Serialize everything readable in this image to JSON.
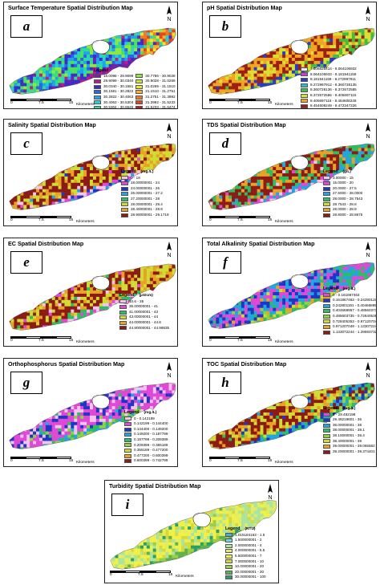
{
  "panels": [
    {
      "id": "a",
      "letter": "a",
      "title": "Surface Temperature Spatial Distribution Map",
      "legend_title": "Legend",
      "legend_unit": "",
      "legend_columns": 2,
      "legend_items": [
        {
          "label": "16.0098 - 29.9099",
          "color": "#7e1fa0"
        },
        {
          "label": "29.9099 - 30.0340",
          "color": "#c01a8a"
        },
        {
          "label": "30.0340 - 30.1581",
          "color": "#3d2bcc"
        },
        {
          "label": "30.1581 - 30.2822",
          "color": "#2f63e6"
        },
        {
          "label": "30.2822 - 30.4063",
          "color": "#1ea3ef"
        },
        {
          "label": "30.4063 - 30.5304",
          "color": "#27d0d4"
        },
        {
          "label": "30.5304 - 30.6545",
          "color": "#2ddc93"
        },
        {
          "label": "30.6545 - 30.7786",
          "color": "#49e35a"
        },
        {
          "label": "30.7786 - 30.9028",
          "color": "#8fe83a"
        },
        {
          "label": "30.9028 - 31.0269",
          "color": "#c7ec2f"
        },
        {
          "label": "31.0269 - 31.1510",
          "color": "#f2e42a"
        },
        {
          "label": "31.1510 - 31.2751",
          "color": "#f6b327"
        },
        {
          "label": "31.2751 - 31.3992",
          "color": "#f07c22"
        },
        {
          "label": "31.3992 - 31.5233",
          "color": "#e4471f"
        },
        {
          "label": "31.5233 - 31.6474",
          "color": "#c8151a"
        }
      ],
      "scale_ticks": [
        "0",
        "7.5",
        "15"
      ],
      "scale_unit": "Kilometers",
      "north": "N"
    },
    {
      "id": "b",
      "letter": "b",
      "title": "pH Spatial Distribution Map",
      "legend_title": "",
      "legend_unit": "",
      "legend_columns": 1,
      "legend_items": [
        {
          "label": "7.506825414 - 8.064106932",
          "color": "#efe9f5"
        },
        {
          "label": "8.064106933 - 8.181941158",
          "color": "#d23bd0"
        },
        {
          "label": "8.181941159 - 8.272997911",
          "color": "#2b3ac9"
        },
        {
          "label": "8.272997912 - 8.360728135",
          "color": "#27bdd6"
        },
        {
          "label": "8.360728136 - 8.372672585",
          "color": "#3fbe41"
        },
        {
          "label": "8.372672586 - 8.405697115",
          "color": "#d9e033"
        },
        {
          "label": "8.405697116 - 8.454608248",
          "color": "#f2a521"
        },
        {
          "label": "8.454608249 - 8.472347226",
          "color": "#9c1f16"
        }
      ],
      "scale_ticks": [
        "0",
        "7.5",
        "15"
      ],
      "scale_unit": "Kilometers",
      "north": "N"
    },
    {
      "id": "c",
      "letter": "c",
      "title": "Salinity Spatial Distribution Map",
      "legend_title": "Legend",
      "legend_unit": "(mg./L)",
      "legend_columns": 1,
      "legend_items": [
        {
          "label": "0 - 18",
          "color": "#f4c3ee"
        },
        {
          "label": "18.00000001 - 24",
          "color": "#df49d5"
        },
        {
          "label": "24.00000001 - 26",
          "color": "#1f35c5"
        },
        {
          "label": "26.00000001 - 27.2",
          "color": "#25a5e0"
        },
        {
          "label": "27.20000001 - 28",
          "color": "#2cbf5f"
        },
        {
          "label": "28.00000001 - 28.4",
          "color": "#cfdd33"
        },
        {
          "label": "28.40000001 - 28.9",
          "color": "#e9a324"
        },
        {
          "label": "28.90000001 - 29.1719",
          "color": "#8d1a15"
        }
      ],
      "scale_ticks": [
        "0",
        "7.5",
        "15"
      ],
      "scale_unit": "Kilometers",
      "north": "N"
    },
    {
      "id": "d",
      "letter": "d",
      "title": "TDS Spatial Distribution Map",
      "legend_title": "Legend",
      "legend_unit": "(g/L)",
      "legend_columns": 1,
      "legend_items": [
        {
          "label": "3.00000 - 15",
          "color": "#f4c3ee"
        },
        {
          "label": "15.0000 - 20",
          "color": "#df49d5"
        },
        {
          "label": "20.0000 - 27.5",
          "color": "#1f35c5"
        },
        {
          "label": "27.5000 - 28.0000",
          "color": "#25a5e0"
        },
        {
          "label": "28.0000 - 28.7543",
          "color": "#2cbf5f"
        },
        {
          "label": "28.7543 - 28.8",
          "color": "#cfdd33"
        },
        {
          "label": "28.0000 - 28.8",
          "color": "#e9a324"
        },
        {
          "label": "28.8000 - 28.8675",
          "color": "#8d1a15"
        }
      ],
      "scale_ticks": [
        "0",
        "7.5",
        "15"
      ],
      "scale_unit": "Kilometers",
      "north": "N"
    },
    {
      "id": "e",
      "letter": "e",
      "title": "EC Spatial Distribution Map",
      "legend_title": "Legend",
      "legend_unit": "(µS/cm)",
      "legend_columns": 1,
      "legend_items": [
        {
          "label": "10.6 - 35",
          "color": "#f4c3ee"
        },
        {
          "label": "35.00000001 - 41",
          "color": "#df49d5"
        },
        {
          "label": "41.00000001 - 43",
          "color": "#2cbf5f"
        },
        {
          "label": "43.00000001 - 44",
          "color": "#cfdd33"
        },
        {
          "label": "44.00000001 - 44.8",
          "color": "#e9a324"
        },
        {
          "label": "44.80000001 - 44.96835",
          "color": "#8d1a15"
        }
      ],
      "scale_ticks": [
        "0",
        "7.5",
        "15"
      ],
      "scale_unit": "Kilometers",
      "north": "N"
    },
    {
      "id": "f",
      "letter": "f",
      "title": "Total Alkalinity Spatial Distribution Map",
      "legend_title": "Legend",
      "legend_unit": "(mg./L)",
      "legend_columns": 1,
      "legend_items": [
        {
          "label": "0 - 0.161867463",
          "color": "#df49d5"
        },
        {
          "label": "0.161867463 - 0.242801190",
          "color": "#1f35c5"
        },
        {
          "label": "0.242801191 - 0.404668956",
          "color": "#25a5e0"
        },
        {
          "label": "0.404668957 - 0.485603734",
          "color": "#2cbf5f"
        },
        {
          "label": "0.485603735 - 0.728405352",
          "color": "#8fd23f"
        },
        {
          "label": "0.728405353 - 0.971207048",
          "color": "#cfdd33"
        },
        {
          "label": "0.971207049 - 1.133072244",
          "color": "#e9a324"
        },
        {
          "label": "1.133072244 - 1.295937320",
          "color": "#8d1a15"
        }
      ],
      "scale_ticks": [
        "0",
        "7.5",
        "15"
      ],
      "scale_unit": "Kilometers",
      "north": "N"
    },
    {
      "id": "g",
      "letter": "g",
      "title": "Orthophosphorus Spatial Distribution Map",
      "legend_title": "Legend",
      "legend_unit": "(mg./L)",
      "legend_columns": 1,
      "legend_items": [
        {
          "label": "0 - 0.142199",
          "color": "#f4c3ee"
        },
        {
          "label": "0.142199 - 0.144400",
          "color": "#df49d5"
        },
        {
          "label": "0.144400 - 0.149200",
          "color": "#1f35c5"
        },
        {
          "label": "0.149200 - 0.187799",
          "color": "#25a5e0"
        },
        {
          "label": "0.187799 - 0.209399",
          "color": "#2cbf5f"
        },
        {
          "label": "0.209399 - 0.355189",
          "color": "#8fd23f"
        },
        {
          "label": "0.355189 - 0.477200",
          "color": "#cfdd33"
        },
        {
          "label": "0.477200 - 0.600399",
          "color": "#e9a324"
        },
        {
          "label": "0.600399 - 0.742799",
          "color": "#8d1a15"
        }
      ],
      "scale_ticks": [
        "0",
        "7.5",
        "15"
      ],
      "scale_unit": "Kilometers",
      "north": "N"
    },
    {
      "id": "h",
      "letter": "h",
      "title": "TOC Spatial Distribution Map",
      "legend_title": "Legend",
      "legend_unit": "(mg./L)",
      "legend_columns": 1,
      "legend_items": [
        {
          "label": "0 - 29.492198",
          "color": "#df49d5"
        },
        {
          "label": "29.49219801 - 36",
          "color": "#1f35c5"
        },
        {
          "label": "36.00000001 - 38",
          "color": "#25a5e0"
        },
        {
          "label": "38.00000001 - 38.1",
          "color": "#2cbf5f"
        },
        {
          "label": "38.10000001 - 38.4",
          "color": "#8fd23f"
        },
        {
          "label": "38.40000001 - 39",
          "color": "#cfdd33"
        },
        {
          "label": "39.00000001 - 39.065582",
          "color": "#e9a324"
        },
        {
          "label": "39.20000001 - 39.374401",
          "color": "#8d1a15"
        }
      ],
      "scale_ticks": [
        "0",
        "7.5",
        "15"
      ],
      "scale_unit": "Kilometers",
      "north": "N"
    },
    {
      "id": "i",
      "letter": "i",
      "title": "Turbidity Spatial Distribution Map",
      "legend_title": "Legend",
      "legend_unit": "(NTU)",
      "legend_columns": 1,
      "legend_items": [
        {
          "label": "1.015184163 - 1.5",
          "color": "#4fa6e8"
        },
        {
          "label": "1.500000001 - 2",
          "color": "#72d6e6"
        },
        {
          "label": "2.000000001 - 4",
          "color": "#a9e4a0"
        },
        {
          "label": "4.000000001 - 5.5",
          "color": "#dded6a"
        },
        {
          "label": "5.500000001 - 7",
          "color": "#f1f047"
        },
        {
          "label": "7.000000001 - 10",
          "color": "#d9d83a"
        },
        {
          "label": "10.00000001 - 20",
          "color": "#9ccf40"
        },
        {
          "label": "20.00000001 - 30",
          "color": "#5fb34a"
        },
        {
          "label": "30.00000001 - 100",
          "color": "#27a06a"
        }
      ],
      "scale_ticks": [
        "0",
        "7.5",
        "15"
      ],
      "scale_unit": "Kilometers",
      "north": "N"
    }
  ]
}
